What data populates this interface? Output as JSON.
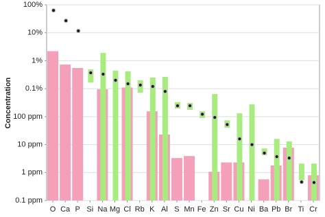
{
  "chart_data": {
    "type": "range-bar",
    "y_label": "Concentration",
    "y_scale": "log",
    "categories": [
      "O",
      "Ca",
      "P",
      "Si",
      "Na",
      "Mg",
      "Cl",
      "Rb",
      "K",
      "Al",
      "S",
      "Mn",
      "Fe",
      "Zn",
      "Sr",
      "Cu",
      "Ni",
      "Ba",
      "Pb",
      "Br",
      "Ti",
      "Cr"
    ],
    "bars": {
      "color": "#f4a0b9",
      "values": [
        22000,
        7300,
        5500,
        null,
        950,
        null,
        1100,
        null,
        155,
        23,
        3.3,
        3.9,
        null,
        1.07,
        2.3,
        2.3,
        null,
        0.57,
        1.8,
        7.8,
        null,
        0.8
      ]
    },
    "ranges": {
      "color": "#a8ec80",
      "low": [
        null,
        null,
        null,
        1660,
        0.1,
        0.1,
        0.1,
        720,
        0.1,
        0.1,
        195,
        175,
        89,
        0.1,
        40,
        0.1,
        0.1,
        4.2,
        0.1,
        0.1,
        0.54,
        0.1
      ],
      "high": [
        null,
        null,
        null,
        4900,
        19000,
        4400,
        4200,
        2000,
        2500,
        2650,
        330,
        310,
        155,
        645,
        74,
        131,
        275,
        7.3,
        16,
        13,
        2.1,
        2.1
      ]
    },
    "points": {
      "color": "#1a1a1a",
      "values": [
        630000,
        270000,
        117000,
        3700,
        3300,
        2000,
        1500,
        1350,
        1200,
        800,
        245,
        245,
        122,
        94,
        52,
        16,
        10,
        5,
        3.7,
        3.3,
        0.46,
        0.44
      ]
    },
    "ylim": [
      0.1,
      1000000
    ],
    "yticks": [
      {
        "value": 1000000,
        "label": "100%"
      },
      {
        "value": 100000,
        "label": "10%"
      },
      {
        "value": 10000,
        "label": "1%"
      },
      {
        "value": 1000,
        "label": "0.1%"
      },
      {
        "value": 100,
        "label": "100 ppm"
      },
      {
        "value": 10,
        "label": "10 ppm"
      },
      {
        "value": 1,
        "label": "1 ppm"
      },
      {
        "value": 0.1,
        "label": "0.1 ppm"
      }
    ],
    "grid": true
  }
}
